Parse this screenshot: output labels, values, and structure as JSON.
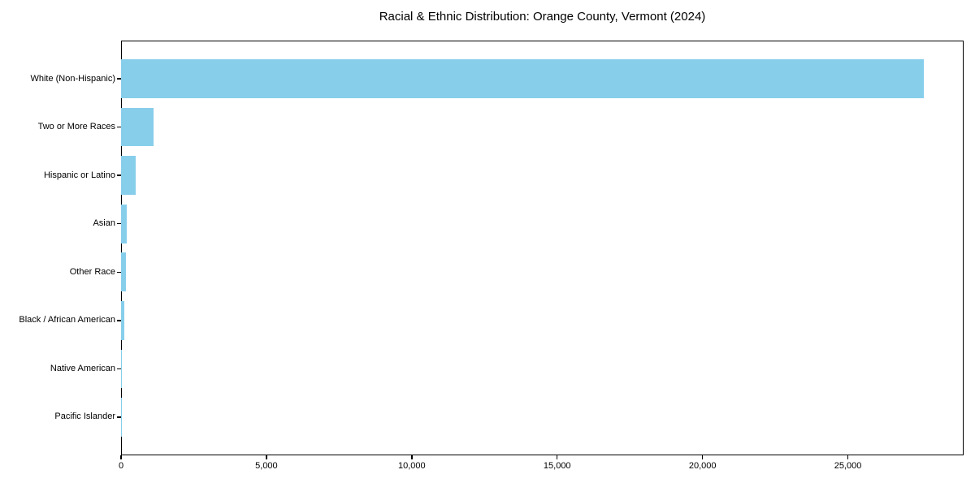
{
  "chart_data": {
    "type": "bar",
    "orientation": "horizontal",
    "title": "Racial & Ethnic Distribution: Orange County, Vermont (2024)",
    "xlabel": "",
    "ylabel": "",
    "categories": [
      "White (Non-Hispanic)",
      "Two or More Races",
      "Hispanic or Latino",
      "Asian",
      "Other Race",
      "Black / African American",
      "Native American",
      "Pacific Islander"
    ],
    "values": [
      27600,
      1130,
      510,
      195,
      175,
      120,
      30,
      5
    ],
    "x_ticks": [
      0,
      5000,
      10000,
      15000,
      20000,
      25000
    ],
    "x_tick_labels": [
      "0",
      "5,000",
      "10,000",
      "15,000",
      "20,000",
      "25,000"
    ],
    "xlim": [
      0,
      28980
    ],
    "bar_color": "#87CEEB",
    "text_color": "#000000",
    "spine_color": "#000000",
    "grid": false,
    "legend": false
  }
}
